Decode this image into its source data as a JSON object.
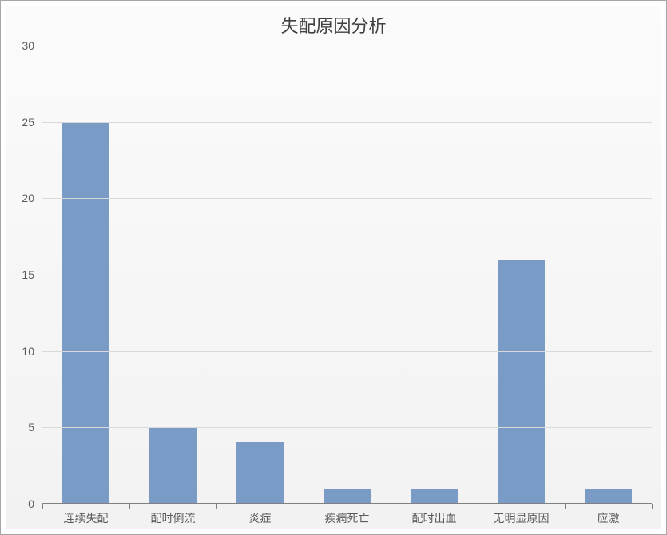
{
  "chart": {
    "type": "bar",
    "title": "失配原因分析",
    "title_fontsize": 22,
    "title_color": "#404040",
    "categories": [
      "连续失配",
      "配时倒流",
      "炎症",
      "疾病死亡",
      "配时出血",
      "无明显原因",
      "应激"
    ],
    "values": [
      25,
      5,
      4,
      1,
      1,
      16,
      1
    ],
    "bar_color": "#7b9bc7",
    "category_gap_ratio": 0.45,
    "ylim": [
      0,
      30
    ],
    "ytick_step": 5,
    "yticks": [
      0,
      5,
      10,
      15,
      20,
      25,
      30
    ],
    "grid_color": "#d9d9d9",
    "axis_color": "#808080",
    "tick_label_fontsize": 14,
    "tick_label_color": "#595959",
    "background_gradient_top": "#fbfbfb",
    "background_gradient_bottom": "#f2f2f2",
    "outer_border_color": "#a6a6a6",
    "inner_border_color": "#bfbfbf"
  }
}
